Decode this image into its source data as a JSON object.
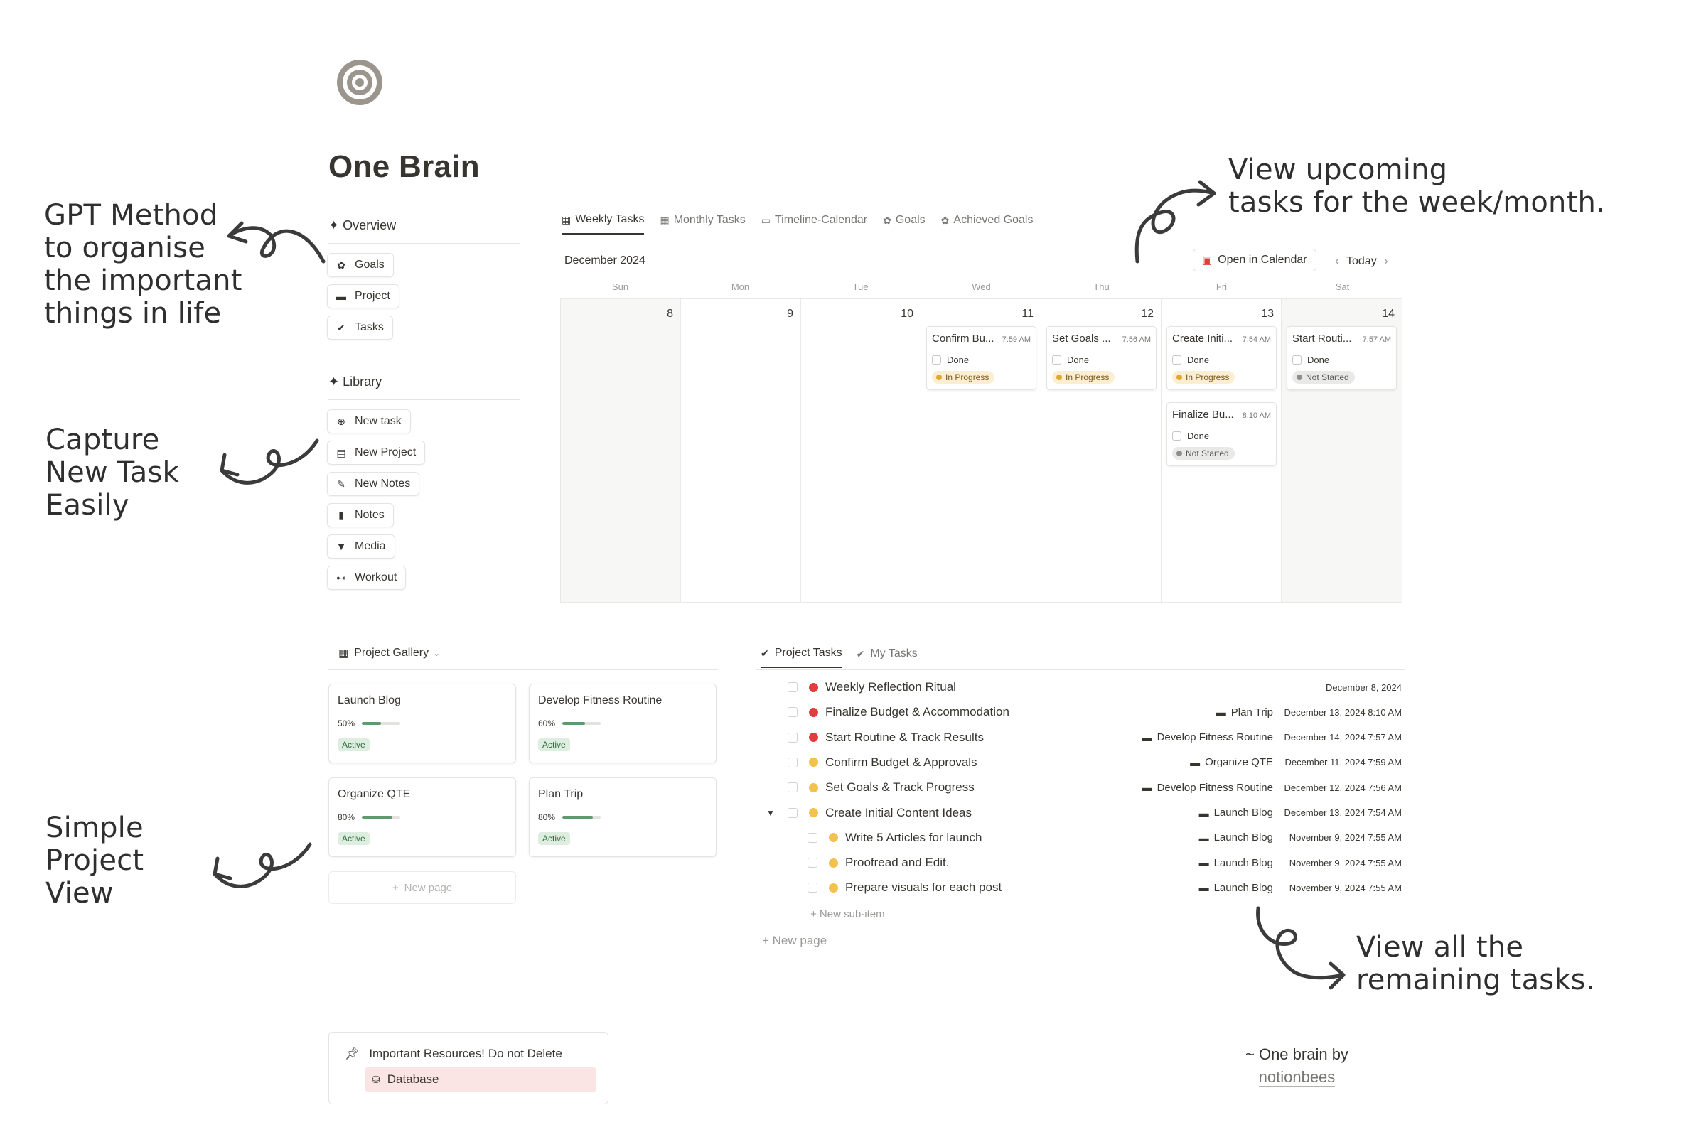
{
  "annotations": {
    "gpt": [
      "GPT Method",
      "to organise",
      "the important",
      "things in life"
    ],
    "capture": [
      "Capture",
      "New Task",
      "Easily"
    ],
    "simple": [
      "Simple",
      "Project",
      "View"
    ],
    "upcoming": [
      "View upcoming",
      "tasks for the week/month."
    ],
    "remaining": [
      "View all the",
      "remaining tasks."
    ]
  },
  "page": {
    "title": "One Brain",
    "icon": "target-icon"
  },
  "sidebar": {
    "overview": {
      "heading": "✦ Overview",
      "items": [
        {
          "label": "Goals",
          "icon": "goals-icon"
        },
        {
          "label": "Project",
          "icon": "folder-icon"
        },
        {
          "label": "Tasks",
          "icon": "check-circle-icon"
        }
      ]
    },
    "library": {
      "heading": "✦ Library",
      "items": [
        {
          "label": "New task",
          "icon": "plus-circle-icon"
        },
        {
          "label": "New Project",
          "icon": "archive-icon"
        },
        {
          "label": "New Notes",
          "icon": "edit-icon"
        },
        {
          "label": "Notes",
          "icon": "document-icon"
        },
        {
          "label": "Media",
          "icon": "bookmark-icon"
        },
        {
          "label": "Workout",
          "icon": "dumbbell-icon"
        }
      ]
    }
  },
  "calendar": {
    "tabs": [
      "Weekly Tasks",
      "Monthly Tasks",
      "Timeline-Calendar",
      "Goals",
      "Achieved Goals"
    ],
    "month": "December 2024",
    "open_label": "Open in Calendar",
    "today_label": "Today",
    "day_headers": [
      "Sun",
      "Mon",
      "Tue",
      "Wed",
      "Thu",
      "Fri",
      "Sat"
    ],
    "day_numbers": [
      "8",
      "9",
      "10",
      "11",
      "12",
      "13",
      "14"
    ],
    "cards": [
      {
        "day": 3,
        "name": "Confirm Bu...",
        "time": "7:59 AM",
        "done": "Done",
        "status": "In Progress"
      },
      {
        "day": 4,
        "name": "Set Goals ...",
        "time": "7:56 AM",
        "done": "Done",
        "status": "In Progress"
      },
      {
        "day": 5,
        "name": "Create Initi...",
        "time": "7:54 AM",
        "done": "Done",
        "status": "In Progress"
      },
      {
        "day": 5,
        "name": "Finalize Bu...",
        "time": "8:10 AM",
        "done": "Done",
        "status": "Not Started"
      },
      {
        "day": 6,
        "name": "Start Routi...",
        "time": "7:57 AM",
        "done": "Done",
        "status": "Not Started"
      }
    ]
  },
  "gallery": {
    "heading": "Project Gallery",
    "cards": [
      {
        "name": "Launch Blog",
        "progress_label": "50%",
        "progress": 0.5,
        "status": "Active"
      },
      {
        "name": "Develop Fitness Routine",
        "progress_label": "60%",
        "progress": 0.6,
        "status": "Active"
      },
      {
        "name": "Organize QTE",
        "progress_label": "80%",
        "progress": 0.8,
        "status": "Active"
      },
      {
        "name": "Plan Trip",
        "progress_label": "80%",
        "progress": 0.8,
        "status": "Active"
      }
    ],
    "new_page": "New page"
  },
  "tasks": {
    "tabs": [
      "Project Tasks",
      "My Tasks"
    ],
    "rows": [
      {
        "name": "Weekly Reflection Ritual",
        "priority": "red",
        "project": "",
        "date": "December 8, 2024",
        "sub": false
      },
      {
        "name": "Finalize Budget & Accommodation",
        "priority": "red",
        "project": "Plan Trip",
        "date": "December 13, 2024 8:10 AM",
        "sub": false
      },
      {
        "name": "Start Routine & Track Results",
        "priority": "red",
        "project": "Develop Fitness Routine",
        "date": "December 14, 2024 7:57 AM",
        "sub": false
      },
      {
        "name": "Confirm Budget & Approvals",
        "priority": "yellow",
        "project": "Organize QTE",
        "date": "December 11, 2024 7:59 AM",
        "sub": false
      },
      {
        "name": "Set Goals & Track Progress",
        "priority": "yellow",
        "project": "Develop Fitness Routine",
        "date": "December 12, 2024 7:56 AM",
        "sub": false
      },
      {
        "name": "Create Initial Content Ideas",
        "priority": "yellow",
        "project": "Launch Blog",
        "date": "December 13, 2024 7:54 AM",
        "sub": false,
        "expanded": true
      },
      {
        "name": "Write 5 Articles for launch",
        "priority": "yellow",
        "project": "Launch Blog",
        "date": "November 9, 2024 7:55 AM",
        "sub": true
      },
      {
        "name": "Proofread and Edit.",
        "priority": "yellow",
        "project": "Launch Blog",
        "date": "November 9, 2024 7:55 AM",
        "sub": true
      },
      {
        "name": "Prepare visuals for each post",
        "priority": "yellow",
        "project": "Launch Blog",
        "date": "November 9, 2024 7:55 AM",
        "sub": true
      }
    ],
    "new_sub_item": "+ New sub-item",
    "new_page": "+ New page"
  },
  "colors": {
    "red": "#e03e3e",
    "yellow": "#f2c14e",
    "progress": "#5e9a6e"
  },
  "footer": {
    "resource_prefix": "Important Resources!",
    "resource_strong": "Do not Delete",
    "database_label": "Database",
    "credit_line": "~ One brain by",
    "credit_link": "notionbees"
  }
}
